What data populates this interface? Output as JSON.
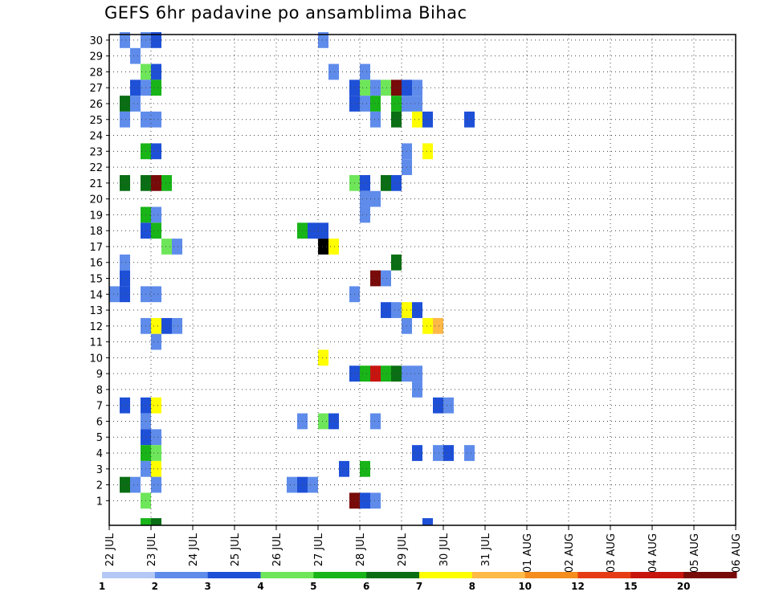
{
  "chart_data": {
    "type": "heatmap",
    "title": "GEFS 6hr padavine po ansamblima Bihac",
    "x_tick_labels": [
      "22 JUL",
      "23 JUL",
      "24 JUL",
      "25 JUL",
      "26 JUL",
      "27 JUL",
      "28 JUL",
      "29 JUL",
      "30 JUL",
      "31 JUL",
      "01 AUG",
      "02 AUG",
      "03 AUG",
      "04 AUG",
      "05 AUG",
      "06 AUG"
    ],
    "x_range_days": [
      0,
      15
    ],
    "y_tick_labels": [
      "1",
      "2",
      "3",
      "4",
      "5",
      "6",
      "7",
      "8",
      "9",
      "10",
      "11",
      "12",
      "13",
      "14",
      "15",
      "16",
      "17",
      "18",
      "19",
      "20",
      "21",
      "22",
      "23",
      "24",
      "25",
      "26",
      "27",
      "28",
      "29",
      "30"
    ],
    "y_range": [
      0,
      30
    ],
    "grid": true,
    "colorbar": {
      "placement": "bottom",
      "labels": [
        "1",
        "2",
        "3",
        "4",
        "5",
        "6",
        "7",
        "8",
        "10",
        "12",
        "15",
        "20"
      ],
      "bounds": [
        1,
        2,
        3,
        4,
        5,
        6,
        7,
        8,
        10,
        12,
        15,
        20
      ],
      "colors": [
        "#b4c8f5",
        "#5f8ceb",
        "#1e50d7",
        "#6ee65a",
        "#18b418",
        "#0a6e14",
        "#ffff00",
        "#ffb946",
        "#f58c1e",
        "#e63c14",
        "#c8140f",
        "#780a0a"
      ]
    },
    "cells": [
      [
        30,
        1,
        1
      ],
      [
        30,
        3,
        1
      ],
      [
        30,
        4,
        2
      ],
      [
        30,
        20,
        1
      ],
      [
        29,
        2,
        1
      ],
      [
        28,
        3,
        3
      ],
      [
        28,
        4,
        2
      ],
      [
        28,
        21,
        1
      ],
      [
        28,
        24,
        1
      ],
      [
        27,
        2,
        2
      ],
      [
        27,
        3,
        1
      ],
      [
        27,
        4,
        4
      ],
      [
        27,
        23,
        2
      ],
      [
        27,
        24,
        3
      ],
      [
        27,
        25,
        1
      ],
      [
        27,
        26,
        3
      ],
      [
        27,
        27,
        11
      ],
      [
        27,
        28,
        2
      ],
      [
        27,
        29,
        1
      ],
      [
        26,
        1,
        5
      ],
      [
        26,
        2,
        1
      ],
      [
        26,
        23,
        2
      ],
      [
        26,
        24,
        1
      ],
      [
        26,
        25,
        4
      ],
      [
        26,
        27,
        4
      ],
      [
        26,
        28,
        1
      ],
      [
        26,
        29,
        1
      ],
      [
        25,
        1,
        1
      ],
      [
        25,
        3,
        1
      ],
      [
        25,
        4,
        1
      ],
      [
        25,
        25,
        1
      ],
      [
        25,
        27,
        5
      ],
      [
        25,
        29,
        6
      ],
      [
        25,
        30,
        2
      ],
      [
        25,
        34,
        2
      ],
      [
        23,
        3,
        4
      ],
      [
        23,
        4,
        2
      ],
      [
        23,
        28,
        1
      ],
      [
        23,
        30,
        6
      ],
      [
        22,
        28,
        1
      ],
      [
        21,
        1,
        5
      ],
      [
        21,
        3,
        5
      ],
      [
        21,
        4,
        11
      ],
      [
        21,
        5,
        4
      ],
      [
        21,
        23,
        3
      ],
      [
        21,
        24,
        2
      ],
      [
        21,
        26,
        5
      ],
      [
        21,
        27,
        2
      ],
      [
        20,
        24,
        1
      ],
      [
        20,
        25,
        1
      ],
      [
        19,
        3,
        4
      ],
      [
        19,
        4,
        1
      ],
      [
        19,
        24,
        1
      ],
      [
        18,
        3,
        2
      ],
      [
        18,
        4,
        4
      ],
      [
        18,
        18,
        4
      ],
      [
        18,
        19,
        2
      ],
      [
        18,
        20,
        2
      ],
      [
        17,
        5,
        3
      ],
      [
        17,
        6,
        1
      ],
      [
        17,
        20,
        12
      ],
      [
        17,
        21,
        6
      ],
      [
        16,
        1,
        1
      ],
      [
        16,
        27,
        5
      ],
      [
        15,
        1,
        2
      ],
      [
        15,
        25,
        11
      ],
      [
        15,
        26,
        1
      ],
      [
        14,
        0,
        1
      ],
      [
        14,
        1,
        2
      ],
      [
        14,
        3,
        1
      ],
      [
        14,
        4,
        1
      ],
      [
        14,
        23,
        1
      ],
      [
        13,
        26,
        2
      ],
      [
        13,
        27,
        1
      ],
      [
        13,
        28,
        6
      ],
      [
        13,
        29,
        2
      ],
      [
        12,
        3,
        1
      ],
      [
        12,
        4,
        6
      ],
      [
        12,
        5,
        2
      ],
      [
        12,
        6,
        1
      ],
      [
        12,
        28,
        1
      ],
      [
        12,
        30,
        6
      ],
      [
        12,
        31,
        7
      ],
      [
        11,
        4,
        1
      ],
      [
        10,
        20,
        6
      ],
      [
        9,
        23,
        2
      ],
      [
        9,
        24,
        4
      ],
      [
        9,
        25,
        10
      ],
      [
        9,
        26,
        4
      ],
      [
        9,
        27,
        5
      ],
      [
        9,
        28,
        1
      ],
      [
        9,
        29,
        1
      ],
      [
        8,
        29,
        1
      ],
      [
        7,
        1,
        2
      ],
      [
        7,
        3,
        2
      ],
      [
        7,
        4,
        6
      ],
      [
        7,
        31,
        2
      ],
      [
        7,
        32,
        1
      ],
      [
        6,
        3,
        1
      ],
      [
        6,
        18,
        1
      ],
      [
        6,
        20,
        3
      ],
      [
        6,
        21,
        2
      ],
      [
        6,
        25,
        1
      ],
      [
        5,
        3,
        2
      ],
      [
        5,
        4,
        1
      ],
      [
        4,
        3,
        4
      ],
      [
        4,
        4,
        3
      ],
      [
        4,
        29,
        2
      ],
      [
        4,
        31,
        1
      ],
      [
        4,
        32,
        2
      ],
      [
        4,
        34,
        1
      ],
      [
        3,
        3,
        1
      ],
      [
        3,
        4,
        6
      ],
      [
        3,
        22,
        2
      ],
      [
        3,
        24,
        4
      ],
      [
        2,
        1,
        5
      ],
      [
        2,
        2,
        1
      ],
      [
        2,
        4,
        1
      ],
      [
        2,
        17,
        1
      ],
      [
        2,
        18,
        2
      ],
      [
        2,
        19,
        1
      ],
      [
        1,
        3,
        3
      ],
      [
        1,
        23,
        11
      ],
      [
        1,
        24,
        2
      ],
      [
        1,
        25,
        1
      ],
      [
        0,
        3,
        4
      ],
      [
        0,
        4,
        5
      ],
      [
        0,
        30,
        2
      ]
    ]
  }
}
